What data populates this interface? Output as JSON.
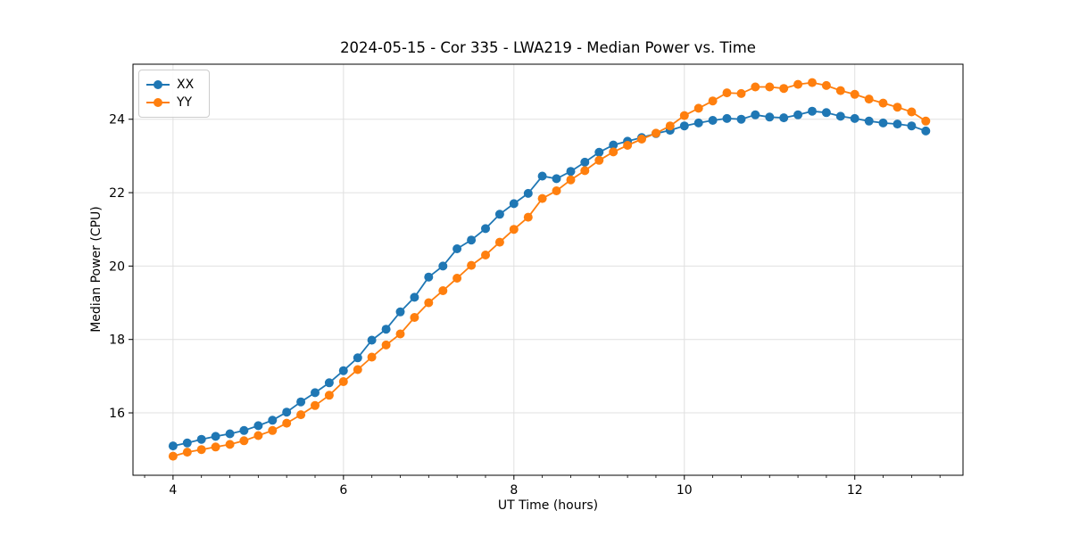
{
  "chart_data": {
    "type": "line",
    "title": "2024-05-15 - Cor 335 - LWA219 - Median Power vs. Time",
    "xlabel": "UT Time (hours)",
    "ylabel": "Median Power (CPU)",
    "xlim": [
      3.53,
      13.27
    ],
    "ylim": [
      14.3,
      25.5
    ],
    "x_ticks": [
      4,
      6,
      8,
      10,
      12
    ],
    "y_ticks": [
      16,
      18,
      20,
      22,
      24
    ],
    "x_minor_step_hours": 0.3333,
    "grid": true,
    "legend_position": "upper left",
    "grid_color": "#e0e0e0",
    "spine_color": "#000000",
    "x": [
      4.0,
      4.167,
      4.333,
      4.5,
      4.667,
      4.833,
      5.0,
      5.167,
      5.333,
      5.5,
      5.667,
      5.833,
      6.0,
      6.167,
      6.333,
      6.5,
      6.667,
      6.833,
      7.0,
      7.167,
      7.333,
      7.5,
      7.667,
      7.833,
      8.0,
      8.167,
      8.333,
      8.5,
      8.667,
      8.833,
      9.0,
      9.167,
      9.333,
      9.5,
      9.667,
      9.833,
      10.0,
      10.167,
      10.333,
      10.5,
      10.667,
      10.833,
      11.0,
      11.167,
      11.333,
      11.5,
      11.667,
      11.833,
      12.0,
      12.167,
      12.333,
      12.5,
      12.667,
      12.833
    ],
    "series": [
      {
        "name": "XX",
        "color": "#1f77b4",
        "values": [
          15.1,
          15.18,
          15.28,
          15.36,
          15.43,
          15.52,
          15.65,
          15.8,
          16.02,
          16.3,
          16.55,
          16.82,
          17.15,
          17.5,
          17.98,
          18.28,
          18.75,
          19.15,
          19.7,
          20.0,
          20.47,
          20.71,
          21.02,
          21.41,
          21.7,
          21.98,
          22.45,
          22.38,
          22.58,
          22.83,
          23.1,
          23.3,
          23.4,
          23.5,
          23.61,
          23.7,
          23.82,
          23.9,
          23.97,
          24.02,
          24.0,
          24.12,
          24.06,
          24.04,
          24.12,
          24.22,
          24.18,
          24.08,
          24.02,
          23.95,
          23.9,
          23.87,
          23.82,
          23.68
        ]
      },
      {
        "name": "YY",
        "color": "#ff7f0e",
        "values": [
          14.82,
          14.93,
          15.0,
          15.07,
          15.14,
          15.24,
          15.38,
          15.52,
          15.72,
          15.95,
          16.2,
          16.48,
          16.85,
          17.18,
          17.52,
          17.85,
          18.15,
          18.6,
          19.0,
          19.33,
          19.67,
          20.02,
          20.3,
          20.65,
          21.0,
          21.33,
          21.84,
          22.05,
          22.35,
          22.6,
          22.88,
          23.11,
          23.29,
          23.46,
          23.62,
          23.82,
          24.1,
          24.3,
          24.5,
          24.72,
          24.7,
          24.88,
          24.88,
          24.84,
          24.95,
          25.0,
          24.92,
          24.78,
          24.68,
          24.55,
          24.44,
          24.33,
          24.2,
          23.95
        ]
      }
    ]
  }
}
